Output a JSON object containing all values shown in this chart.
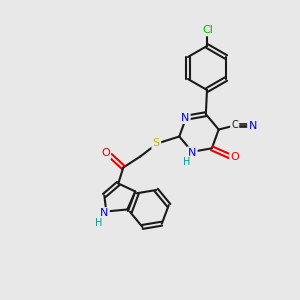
{
  "bg_color": "#e8e8e8",
  "bond_color": "#1a1a1a",
  "atom_colors": {
    "N": "#0000ee",
    "O": "#ee0000",
    "S": "#bbbb00",
    "Cl": "#00bb00",
    "H": "#009999"
  },
  "figsize": [
    3.0,
    3.0
  ],
  "dpi": 100
}
